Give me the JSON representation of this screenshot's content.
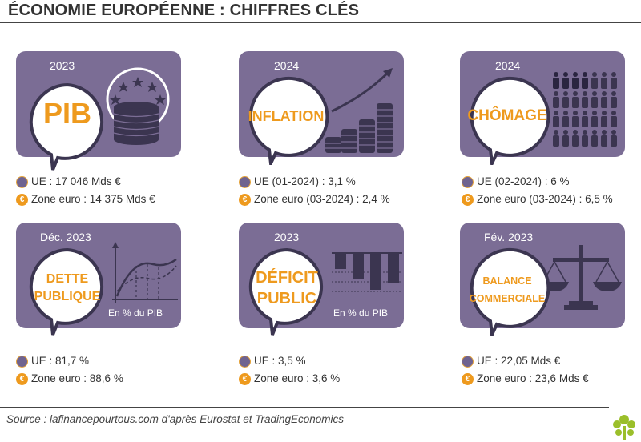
{
  "title": "ÉCONOMIE EUROPÉENNE : CHIFFRES CLÉS",
  "cards": [
    {
      "period": "2023",
      "label_lines": [
        "PIB"
      ],
      "unit": "",
      "ue": "UE : 17 046 Mds €",
      "ez": "Zone euro : 14 375 Mds €"
    },
    {
      "period": "2024",
      "label_lines": [
        "INFLATION"
      ],
      "unit": "",
      "ue": "UE (01-2024) : 3,1 %",
      "ez": "Zone euro (03-2024) : 2,4 %"
    },
    {
      "period": "2024",
      "label_lines": [
        "CHÔMAGE"
      ],
      "unit": "",
      "ue": "UE (02-2024) : 6 %",
      "ez": "Zone euro (03-2024) : 6,5 %"
    },
    {
      "period": "Déc. 2023",
      "label_lines": [
        "DETTE",
        "PUBLIQUE"
      ],
      "unit": "En % du PIB",
      "ue": "UE : 81,7 %",
      "ez": "Zone euro : 88,6 %"
    },
    {
      "period": "2023",
      "label_lines": [
        "DÉFICIT",
        "PUBLIC"
      ],
      "unit": "En % du PIB",
      "ue": "UE : 3,5 %",
      "ez": "Zone euro : 3,6 %"
    },
    {
      "period": "Fév. 2023",
      "label_lines": [
        "BALANCE",
        "COMMERCIALE"
      ],
      "unit": "",
      "ue": "UE : 22,05 Mds €",
      "ez": "Zone euro : 23,6 Mds €"
    }
  ],
  "icons": {
    "ue": "eu-flag-icon",
    "ez": "euro-icon"
  },
  "euro_symbol": "€",
  "source": "Source : lafinancepourtous.com d'après Eurostat et TradingEconomics",
  "colors": {
    "card": "#7b6d95",
    "accent": "#ee9a1e",
    "text": "#333333",
    "illustration": "#5c5178"
  }
}
